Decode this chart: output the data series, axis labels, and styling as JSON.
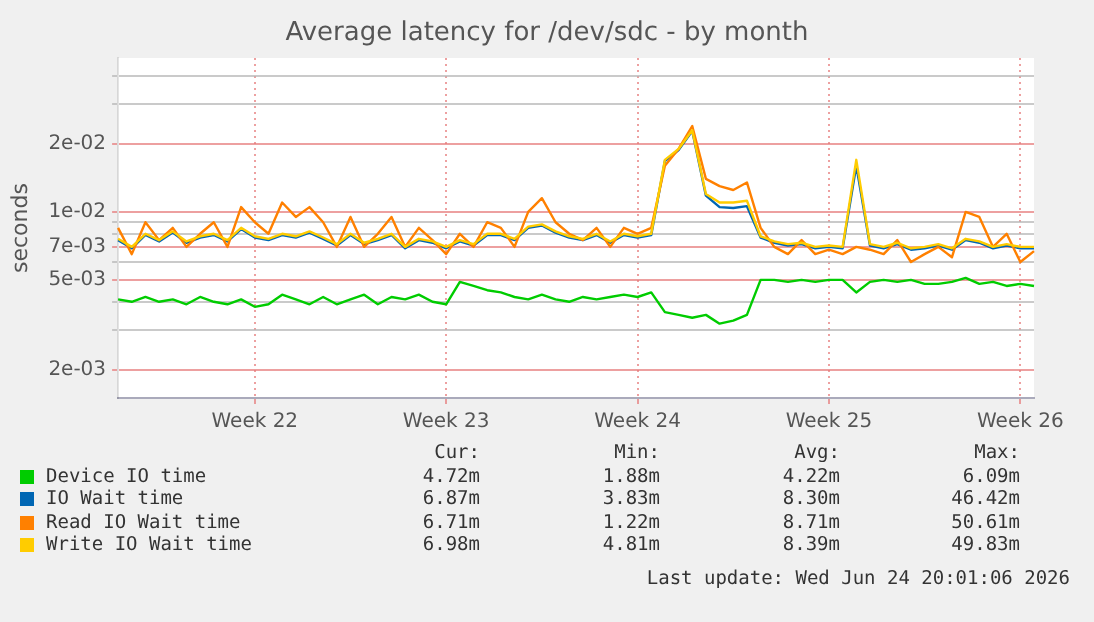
{
  "chart_data": {
    "type": "line",
    "title": "Average latency for /dev/sdc - by month",
    "ylabel": "seconds",
    "categories": [
      null,
      null,
      null,
      null,
      null,
      null,
      null,
      null,
      null,
      null,
      "Week 22",
      null,
      null,
      null,
      null,
      null,
      null,
      null,
      null,
      null,
      null,
      null,
      null,
      null,
      "Week 23",
      null,
      null,
      null,
      null,
      null,
      null,
      null,
      null,
      null,
      null,
      null,
      null,
      null,
      "Week 24",
      null,
      null,
      null,
      null,
      null,
      null,
      null,
      null,
      null,
      null,
      null,
      null,
      null,
      "Week 25",
      null,
      null,
      null,
      null,
      null,
      null,
      null,
      null,
      null,
      null,
      null,
      null,
      null,
      "Week 26",
      null
    ],
    "series": [
      {
        "name": "Device IO time",
        "color": "#00cc00",
        "values": [
          0.0041,
          0.004,
          0.0042,
          0.004,
          0.0041,
          0.0039,
          0.0042,
          0.004,
          0.0039,
          0.0041,
          0.0038,
          0.0039,
          0.0043,
          0.0041,
          0.0039,
          0.0042,
          0.0039,
          0.0041,
          0.0043,
          0.0039,
          0.0042,
          0.0041,
          0.0043,
          0.004,
          0.0039,
          0.0049,
          0.0047,
          0.0045,
          0.0044,
          0.0042,
          0.0041,
          0.0043,
          0.0041,
          0.004,
          0.0042,
          0.0041,
          0.0042,
          0.0043,
          0.0042,
          0.0044,
          0.0036,
          0.0035,
          0.0034,
          0.0035,
          0.0032,
          0.0033,
          0.0035,
          0.005,
          0.005,
          0.0049,
          0.005,
          0.0049,
          0.005,
          0.005,
          0.0044,
          0.0049,
          0.005,
          0.0049,
          0.005,
          0.0048,
          0.0048,
          0.0049,
          0.0051,
          0.0048,
          0.0049,
          0.0047,
          0.0048,
          0.0047
        ]
      },
      {
        "name": "IO Wait time",
        "color": "#0066b3",
        "values": [
          0.0075,
          0.0069,
          0.0079,
          0.0074,
          0.0081,
          0.0073,
          0.0077,
          0.0079,
          0.0074,
          0.0084,
          0.0077,
          0.0075,
          0.0079,
          0.0077,
          0.0081,
          0.0076,
          0.0071,
          0.0079,
          0.0072,
          0.0075,
          0.0079,
          0.0069,
          0.0075,
          0.0073,
          0.0069,
          0.0074,
          0.0071,
          0.0079,
          0.0079,
          0.0075,
          0.0085,
          0.0087,
          0.0081,
          0.0077,
          0.0075,
          0.0079,
          0.0073,
          0.0079,
          0.0077,
          0.0079,
          0.0168,
          0.0188,
          0.0228,
          0.0118,
          0.0105,
          0.0104,
          0.0106,
          0.0077,
          0.0073,
          0.0071,
          0.0072,
          0.0069,
          0.007,
          0.0069,
          0.016,
          0.0071,
          0.0069,
          0.0072,
          0.0068,
          0.0069,
          0.0071,
          0.0068,
          0.0075,
          0.0073,
          0.0069,
          0.0071,
          0.0069,
          0.0069
        ]
      },
      {
        "name": "Read IO Wait time",
        "color": "#ff8000",
        "values": [
          0.0085,
          0.0065,
          0.009,
          0.0075,
          0.0085,
          0.007,
          0.008,
          0.009,
          0.007,
          0.0105,
          0.009,
          0.008,
          0.011,
          0.0095,
          0.0105,
          0.009,
          0.007,
          0.0095,
          0.007,
          0.008,
          0.0095,
          0.007,
          0.0085,
          0.0075,
          0.0065,
          0.008,
          0.007,
          0.009,
          0.0085,
          0.007,
          0.01,
          0.0115,
          0.009,
          0.008,
          0.0075,
          0.0085,
          0.007,
          0.0085,
          0.008,
          0.0085,
          0.016,
          0.019,
          0.024,
          0.014,
          0.013,
          0.0125,
          0.0135,
          0.0085,
          0.007,
          0.0065,
          0.0075,
          0.0065,
          0.0068,
          0.0065,
          0.007,
          0.0068,
          0.0065,
          0.0075,
          0.006,
          0.0065,
          0.007,
          0.0063,
          0.01,
          0.0095,
          0.007,
          0.008,
          0.006,
          0.0067
        ]
      },
      {
        "name": "Write IO Wait time",
        "color": "#ffcc00",
        "values": [
          0.0076,
          0.007,
          0.008,
          0.0075,
          0.0082,
          0.0074,
          0.0078,
          0.008,
          0.0075,
          0.0085,
          0.0078,
          0.0076,
          0.008,
          0.0078,
          0.0082,
          0.0077,
          0.0072,
          0.008,
          0.0073,
          0.0076,
          0.008,
          0.007,
          0.0076,
          0.0074,
          0.007,
          0.0075,
          0.0072,
          0.008,
          0.008,
          0.0076,
          0.0086,
          0.0088,
          0.0082,
          0.0078,
          0.0076,
          0.008,
          0.0074,
          0.008,
          0.0078,
          0.008,
          0.017,
          0.019,
          0.023,
          0.012,
          0.011,
          0.011,
          0.0112,
          0.0078,
          0.0074,
          0.0072,
          0.0073,
          0.007,
          0.0071,
          0.007,
          0.017,
          0.0072,
          0.007,
          0.0073,
          0.0069,
          0.007,
          0.0072,
          0.0069,
          0.0076,
          0.0074,
          0.007,
          0.0072,
          0.007,
          0.007
        ]
      }
    ],
    "log": "y",
    "ylim": [
      0.0015,
      0.048
    ],
    "yticks": [
      {
        "value": 0.002,
        "label": "2e-03"
      },
      {
        "value": 0.003,
        "label": null
      },
      {
        "value": 0.004,
        "label": null
      },
      {
        "value": 0.005,
        "label": "5e-03"
      },
      {
        "value": 0.006,
        "label": null
      },
      {
        "value": 0.007,
        "label": "7e-03"
      },
      {
        "value": 0.008,
        "label": null
      },
      {
        "value": 0.009,
        "label": null
      },
      {
        "value": 0.01,
        "label": "1e-02"
      },
      {
        "value": 0.02,
        "label": "2e-02"
      },
      {
        "value": 0.03,
        "label": null
      },
      {
        "value": 0.04,
        "label": null
      }
    ],
    "grid": true,
    "legend": "bottom",
    "marker": "none",
    "line_style": "solid",
    "annotations": [
      "Cur:",
      "Min:",
      "Avg:",
      "Max:",
      "4.72m",
      "1.88m",
      "4.22m",
      "6.09m",
      "6.87m",
      "3.83m",
      "8.30m",
      "46.42m",
      "6.71m",
      "1.22m",
      "8.71m",
      "50.61m",
      "6.98m",
      "4.81m",
      "8.39m",
      "49.83m",
      "Last update: Wed Jun 24 20:01:06 2026"
    ]
  }
}
